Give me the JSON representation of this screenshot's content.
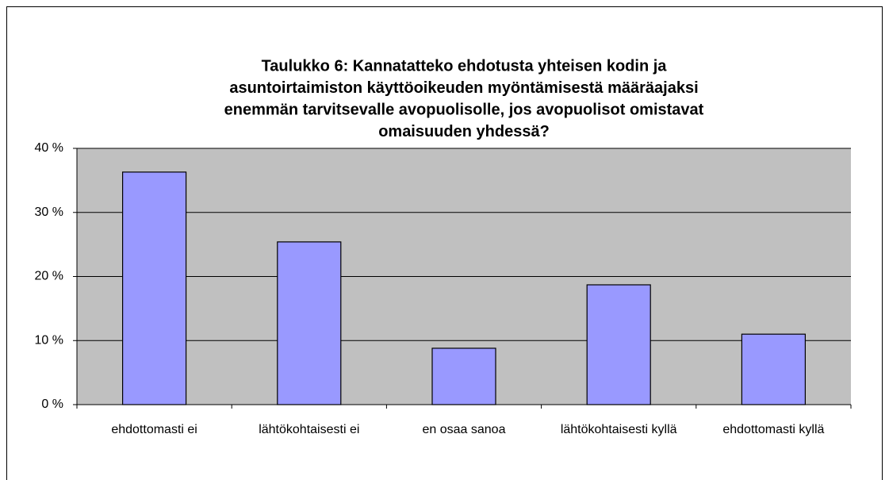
{
  "chart_data": {
    "type": "bar",
    "title": [
      "Taulukko 6: Kannatatteko ehdotusta yhteisen kodin ja",
      "asuntoirtaimiston käyttöoikeuden myöntämisestä määräajaksi",
      "enemmän tarvitsevalle avopuolisolle, jos avopuolisot omistavat",
      "omaisuuden yhdessä?"
    ],
    "categories": [
      "ehdottomasti ei",
      "lähtökohtaisesti ei",
      "en osaa sanoa",
      "lähtökohtaisesti kyllä",
      "ehdottomasti kyllä"
    ],
    "values": [
      36.3,
      25.4,
      8.8,
      18.7,
      11.0
    ],
    "color": "#9999ff",
    "ylim": [
      0,
      40
    ],
    "yticks": [
      {
        "value": 0,
        "label": "0 %"
      },
      {
        "value": 10,
        "label": "10 %"
      },
      {
        "value": 20,
        "label": "20 %"
      },
      {
        "value": 30,
        "label": "30 %"
      },
      {
        "value": 40,
        "label": "40 %"
      }
    ],
    "grid": true
  }
}
